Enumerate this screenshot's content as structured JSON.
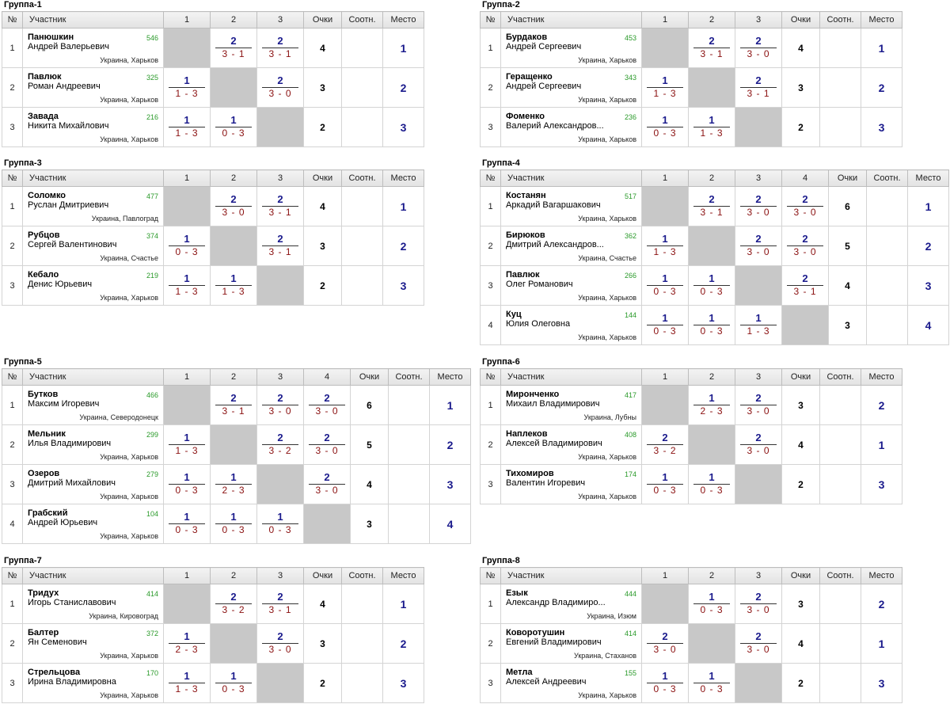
{
  "headers": {
    "num": "№",
    "participant": "Участник",
    "points": "Очки",
    "ratio": "Соотн.",
    "place": "Место"
  },
  "groups": [
    {
      "title": "Группа-1",
      "players": [
        {
          "n": "1",
          "surname": "Панюшкин",
          "name": "Андрей Валерьевич",
          "rating": "546",
          "region": "Украина, Харьков",
          "res": [
            null,
            [
              "2",
              "3 - 1"
            ],
            [
              "2",
              "3 - 1"
            ]
          ],
          "pts": "4",
          "ratio": "",
          "place": "1"
        },
        {
          "n": "2",
          "surname": "Павлюк",
          "name": "Роман Андреевич",
          "rating": "325",
          "region": "Украина, Харьков",
          "res": [
            [
              "1",
              "1 - 3"
            ],
            null,
            [
              "2",
              "3 - 0"
            ]
          ],
          "pts": "3",
          "ratio": "",
          "place": "2"
        },
        {
          "n": "3",
          "surname": "Завада",
          "name": "Никита Михайлович",
          "rating": "216",
          "region": "Украина, Харьков",
          "res": [
            [
              "1",
              "1 - 3"
            ],
            [
              "1",
              "0 - 3"
            ],
            null
          ],
          "pts": "2",
          "ratio": "",
          "place": "3"
        }
      ]
    },
    {
      "title": "Группа-2",
      "players": [
        {
          "n": "1",
          "surname": "Бурдаков",
          "name": "Андрей Сергеевич",
          "rating": "453",
          "region": "Украина, Харьков",
          "res": [
            null,
            [
              "2",
              "3 - 1"
            ],
            [
              "2",
              "3 - 0"
            ]
          ],
          "pts": "4",
          "ratio": "",
          "place": "1"
        },
        {
          "n": "2",
          "surname": "Геращенко",
          "name": "Андрей Сергеевич",
          "rating": "343",
          "region": "Украина, Харьков",
          "res": [
            [
              "1",
              "1 - 3"
            ],
            null,
            [
              "2",
              "3 - 1"
            ]
          ],
          "pts": "3",
          "ratio": "",
          "place": "2"
        },
        {
          "n": "3",
          "surname": "Фоменко",
          "name": "Валерий Александров...",
          "rating": "236",
          "region": "Украина, Харьков",
          "res": [
            [
              "1",
              "0 - 3"
            ],
            [
              "1",
              "1 - 3"
            ],
            null
          ],
          "pts": "2",
          "ratio": "",
          "place": "3"
        }
      ]
    },
    {
      "title": "Группа-3",
      "players": [
        {
          "n": "1",
          "surname": "Соломко",
          "name": "Руслан Дмитриевич",
          "rating": "477",
          "region": "Украина, Павлоград",
          "res": [
            null,
            [
              "2",
              "3 - 0"
            ],
            [
              "2",
              "3 - 1"
            ]
          ],
          "pts": "4",
          "ratio": "",
          "place": "1"
        },
        {
          "n": "2",
          "surname": "Рубцов",
          "name": "Сергей Валентинович",
          "rating": "374",
          "region": "Украина, Счастье",
          "res": [
            [
              "1",
              "0 - 3"
            ],
            null,
            [
              "2",
              "3 - 1"
            ]
          ],
          "pts": "3",
          "ratio": "",
          "place": "2"
        },
        {
          "n": "3",
          "surname": "Кебало",
          "name": "Денис Юрьевич",
          "rating": "219",
          "region": "Украина, Харьков",
          "res": [
            [
              "1",
              "1 - 3"
            ],
            [
              "1",
              "1 - 3"
            ],
            null
          ],
          "pts": "2",
          "ratio": "",
          "place": "3"
        }
      ]
    },
    {
      "title": "Группа-4",
      "players": [
        {
          "n": "1",
          "surname": "Костанян",
          "name": "Аркадий Вагаршакович",
          "rating": "517",
          "region": "Украина, Харьков",
          "res": [
            null,
            [
              "2",
              "3 - 1"
            ],
            [
              "2",
              "3 - 0"
            ],
            [
              "2",
              "3 - 0"
            ]
          ],
          "pts": "6",
          "ratio": "",
          "place": "1"
        },
        {
          "n": "2",
          "surname": "Бирюков",
          "name": "Дмитрий Александров...",
          "rating": "362",
          "region": "Украина, Счастье",
          "res": [
            [
              "1",
              "1 - 3"
            ],
            null,
            [
              "2",
              "3 - 0"
            ],
            [
              "2",
              "3 - 0"
            ]
          ],
          "pts": "5",
          "ratio": "",
          "place": "2"
        },
        {
          "n": "3",
          "surname": "Павлюк",
          "name": "Олег Романович",
          "rating": "266",
          "region": "Украина, Харьков",
          "res": [
            [
              "1",
              "0 - 3"
            ],
            [
              "1",
              "0 - 3"
            ],
            null,
            [
              "2",
              "3 - 1"
            ]
          ],
          "pts": "4",
          "ratio": "",
          "place": "3"
        },
        {
          "n": "4",
          "surname": "Куц",
          "name": "Юлия Олеговна",
          "rating": "144",
          "region": "Украина, Харьков",
          "res": [
            [
              "1",
              "0 - 3"
            ],
            [
              "1",
              "0 - 3"
            ],
            [
              "1",
              "1 - 3"
            ],
            null
          ],
          "pts": "3",
          "ratio": "",
          "place": "4"
        }
      ]
    },
    {
      "title": "Группа-5",
      "players": [
        {
          "n": "1",
          "surname": "Бутков",
          "name": "Максим Игоревич",
          "rating": "466",
          "region": "Украина, Северодонецк",
          "res": [
            null,
            [
              "2",
              "3 - 1"
            ],
            [
              "2",
              "3 - 0"
            ],
            [
              "2",
              "3 - 0"
            ]
          ],
          "pts": "6",
          "ratio": "",
          "place": "1"
        },
        {
          "n": "2",
          "surname": "Мельник",
          "name": "Илья Владимирович",
          "rating": "299",
          "region": "Украина, Харьков",
          "res": [
            [
              "1",
              "1 - 3"
            ],
            null,
            [
              "2",
              "3 - 2"
            ],
            [
              "2",
              "3 - 0"
            ]
          ],
          "pts": "5",
          "ratio": "",
          "place": "2"
        },
        {
          "n": "3",
          "surname": "Озеров",
          "name": "Дмитрий Михайлович",
          "rating": "279",
          "region": "Украина, Харьков",
          "res": [
            [
              "1",
              "0 - 3"
            ],
            [
              "1",
              "2 - 3"
            ],
            null,
            [
              "2",
              "3 - 0"
            ]
          ],
          "pts": "4",
          "ratio": "",
          "place": "3"
        },
        {
          "n": "4",
          "surname": "Грабский",
          "name": "Андрей Юрьевич",
          "rating": "104",
          "region": "Украина, Харьков",
          "res": [
            [
              "1",
              "0 - 3"
            ],
            [
              "1",
              "0 - 3"
            ],
            [
              "1",
              "0 - 3"
            ],
            null
          ],
          "pts": "3",
          "ratio": "",
          "place": "4"
        }
      ]
    },
    {
      "title": "Группа-6",
      "players": [
        {
          "n": "1",
          "surname": "Миронченко",
          "name": "Михаил Владимирович",
          "rating": "417",
          "region": "Украина, Лубны",
          "res": [
            null,
            [
              "1",
              "2 - 3"
            ],
            [
              "2",
              "3 - 0"
            ]
          ],
          "pts": "3",
          "ratio": "",
          "place": "2"
        },
        {
          "n": "2",
          "surname": "Наплеков",
          "name": "Алексей Владимирович",
          "rating": "408",
          "region": "Украина, Харьков",
          "res": [
            [
              "2",
              "3 - 2"
            ],
            null,
            [
              "2",
              "3 - 0"
            ]
          ],
          "pts": "4",
          "ratio": "",
          "place": "1"
        },
        {
          "n": "3",
          "surname": "Тихомиров",
          "name": "Валентин Игоревич",
          "rating": "174",
          "region": "Украина, Харьков",
          "res": [
            [
              "1",
              "0 - 3"
            ],
            [
              "1",
              "0 - 3"
            ],
            null
          ],
          "pts": "2",
          "ratio": "",
          "place": "3"
        }
      ]
    },
    {
      "title": "Группа-7",
      "players": [
        {
          "n": "1",
          "surname": "Тридух",
          "name": "Игорь Станиславович",
          "rating": "414",
          "region": "Украина, Кировоград",
          "res": [
            null,
            [
              "2",
              "3 - 2"
            ],
            [
              "2",
              "3 - 1"
            ]
          ],
          "pts": "4",
          "ratio": "",
          "place": "1"
        },
        {
          "n": "2",
          "surname": "Балтер",
          "name": "Ян Семенович",
          "rating": "372",
          "region": "Украина, Харьков",
          "res": [
            [
              "1",
              "2 - 3"
            ],
            null,
            [
              "2",
              "3 - 0"
            ]
          ],
          "pts": "3",
          "ratio": "",
          "place": "2"
        },
        {
          "n": "3",
          "surname": "Стрельцова",
          "name": "Ирина Владимировна",
          "rating": "170",
          "region": "Украина, Харьков",
          "res": [
            [
              "1",
              "1 - 3"
            ],
            [
              "1",
              "0 - 3"
            ],
            null
          ],
          "pts": "2",
          "ratio": "",
          "place": "3"
        }
      ]
    },
    {
      "title": "Группа-8",
      "players": [
        {
          "n": "1",
          "surname": "Езык",
          "name": "Александр Владимиро...",
          "rating": "444",
          "region": "Украина, Изюм",
          "res": [
            null,
            [
              "1",
              "0 - 3"
            ],
            [
              "2",
              "3 - 0"
            ]
          ],
          "pts": "3",
          "ratio": "",
          "place": "2"
        },
        {
          "n": "2",
          "surname": "Коворотушин",
          "name": "Евгений Владимирович",
          "rating": "414",
          "region": "Украина, Стаханов",
          "res": [
            [
              "2",
              "3 - 0"
            ],
            null,
            [
              "2",
              "3 - 0"
            ]
          ],
          "pts": "4",
          "ratio": "",
          "place": "1"
        },
        {
          "n": "3",
          "surname": "Метла",
          "name": "Алексей Андреевич",
          "rating": "155",
          "region": "Украина, Харьков",
          "res": [
            [
              "1",
              "0 - 3"
            ],
            [
              "1",
              "0 - 3"
            ],
            null
          ],
          "pts": "2",
          "ratio": "",
          "place": "3"
        }
      ]
    }
  ]
}
